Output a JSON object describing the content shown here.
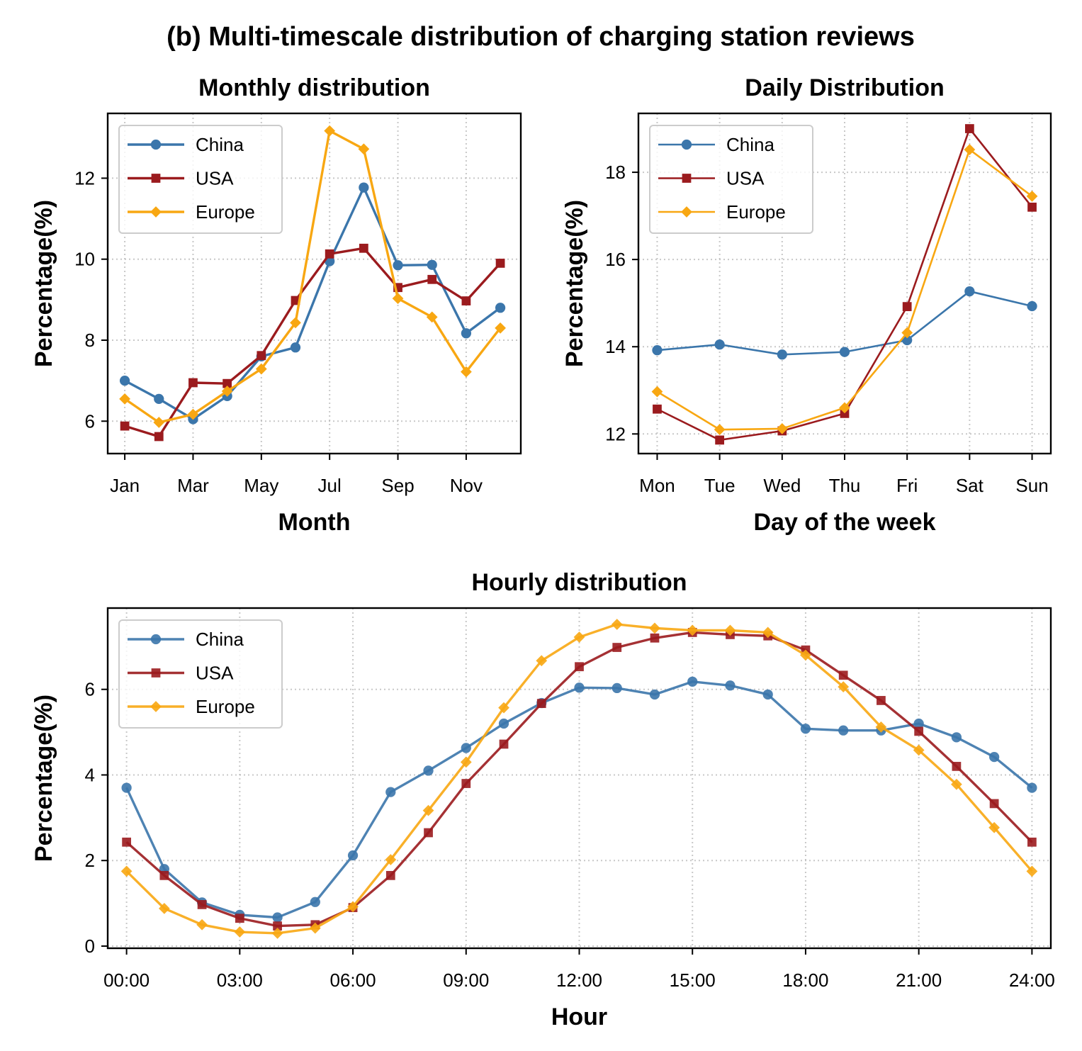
{
  "figure": {
    "title": "(b) Multi-timescale distribution of charging station reviews"
  },
  "colors": {
    "China": "#3b76ab",
    "USA": "#9b1b1e",
    "Europe": "#f8a712"
  },
  "chart_data": [
    {
      "id": "monthly",
      "type": "line",
      "title": "Monthly distribution",
      "xlabel": "Month",
      "ylabel": "Percentage(%)",
      "x": [
        1,
        2,
        3,
        4,
        5,
        6,
        7,
        8,
        9,
        10,
        11,
        12
      ],
      "xticks": [
        1,
        3,
        5,
        7,
        9,
        11
      ],
      "xtick_labels": [
        "Jan",
        "Mar",
        "May",
        "Jul",
        "Sep",
        "Nov"
      ],
      "xlim": [
        0.5,
        12.6
      ],
      "ylim": [
        5.2,
        13.6
      ],
      "yticks": [
        6,
        8,
        10,
        12
      ],
      "grid": true,
      "legend_position": "upper-left",
      "series": [
        {
          "name": "China",
          "marker": "circle",
          "values": [
            7.0,
            6.55,
            6.05,
            6.62,
            7.6,
            7.82,
            9.95,
            11.77,
            9.85,
            9.86,
            8.17,
            8.8
          ]
        },
        {
          "name": "USA",
          "marker": "square",
          "values": [
            5.88,
            5.62,
            6.95,
            6.93,
            7.62,
            8.98,
            10.13,
            10.27,
            9.3,
            9.5,
            8.97,
            9.9
          ]
        },
        {
          "name": "Europe",
          "marker": "diamond",
          "values": [
            6.55,
            5.97,
            6.17,
            6.74,
            7.29,
            8.43,
            13.17,
            12.72,
            9.03,
            8.57,
            7.22,
            8.3
          ]
        }
      ]
    },
    {
      "id": "daily",
      "type": "line",
      "title": "Daily Distribution",
      "xlabel": "Day of the week",
      "ylabel": "Percentage(%)",
      "x": [
        0,
        1,
        2,
        3,
        4,
        5,
        6
      ],
      "xticks": [
        0,
        1,
        2,
        3,
        4,
        5,
        6
      ],
      "xtick_labels": [
        "Mon",
        "Tue",
        "Wed",
        "Thu",
        "Fri",
        "Sat",
        "Sun"
      ],
      "xlim": [
        -0.3,
        6.3
      ],
      "ylim": [
        11.55,
        19.35
      ],
      "yticks": [
        12,
        14,
        16,
        18
      ],
      "grid": true,
      "legend_position": "upper-left",
      "series": [
        {
          "name": "China",
          "marker": "circle",
          "values": [
            13.92,
            14.05,
            13.82,
            13.88,
            14.15,
            15.27,
            14.93
          ]
        },
        {
          "name": "USA",
          "marker": "square",
          "values": [
            12.57,
            11.86,
            12.07,
            12.47,
            14.92,
            19.0,
            17.2
          ]
        },
        {
          "name": "Europe",
          "marker": "diamond",
          "values": [
            12.97,
            12.1,
            12.12,
            12.6,
            14.32,
            18.52,
            17.45
          ]
        }
      ]
    },
    {
      "id": "hourly",
      "type": "line",
      "title": "Hourly distribution",
      "xlabel": "Hour",
      "ylabel": "Percentage(%)",
      "x": [
        0,
        1,
        2,
        3,
        4,
        5,
        6,
        7,
        8,
        9,
        10,
        11,
        12,
        13,
        14,
        15,
        16,
        17,
        18,
        19,
        20,
        21,
        22,
        23,
        24
      ],
      "xticks": [
        0,
        3,
        6,
        9,
        12,
        15,
        18,
        21,
        24
      ],
      "xtick_labels": [
        "00:00",
        "03:00",
        "06:00",
        "09:00",
        "12:00",
        "15:00",
        "18:00",
        "21:00",
        "24:00"
      ],
      "xlim": [
        -0.5,
        24.5
      ],
      "ylim": [
        -0.05,
        7.9
      ],
      "yticks": [
        0,
        2,
        4,
        6
      ],
      "grid": true,
      "legend_position": "upper-left",
      "series": [
        {
          "name": "China",
          "marker": "circle",
          "values": [
            3.7,
            1.8,
            1.02,
            0.73,
            0.67,
            1.03,
            2.12,
            3.6,
            4.1,
            4.63,
            5.2,
            5.68,
            6.04,
            6.03,
            5.88,
            6.18,
            6.09,
            5.88,
            5.08,
            5.04,
            5.04,
            5.2,
            4.88,
            4.42,
            3.7
          ]
        },
        {
          "name": "USA",
          "marker": "square",
          "values": [
            2.43,
            1.65,
            0.97,
            0.65,
            0.47,
            0.5,
            0.9,
            1.65,
            2.65,
            3.8,
            4.72,
            5.67,
            6.53,
            6.98,
            7.2,
            7.33,
            7.28,
            7.25,
            6.92,
            6.33,
            5.74,
            5.02,
            4.2,
            3.33,
            2.43
          ]
        },
        {
          "name": "Europe",
          "marker": "diamond",
          "values": [
            1.75,
            0.88,
            0.5,
            0.33,
            0.3,
            0.42,
            0.92,
            2.02,
            3.17,
            4.3,
            5.57,
            6.67,
            7.22,
            7.52,
            7.43,
            7.38,
            7.38,
            7.33,
            6.8,
            6.06,
            5.12,
            4.58,
            3.78,
            2.77,
            1.75
          ]
        }
      ]
    }
  ]
}
